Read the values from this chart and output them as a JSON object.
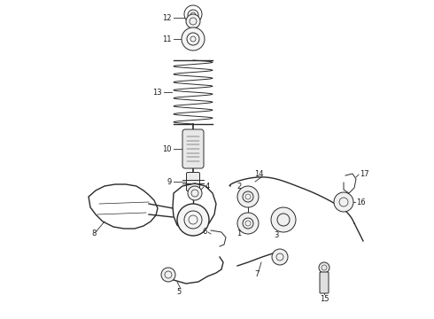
{
  "background_color": "#ffffff",
  "fig_width": 4.9,
  "fig_height": 3.6,
  "dpi": 100,
  "line_color": "#2a2a2a",
  "label_color": "#1a1a1a",
  "label_fontsize": 6.0,
  "lw_main": 0.7,
  "lw_thick": 1.0
}
